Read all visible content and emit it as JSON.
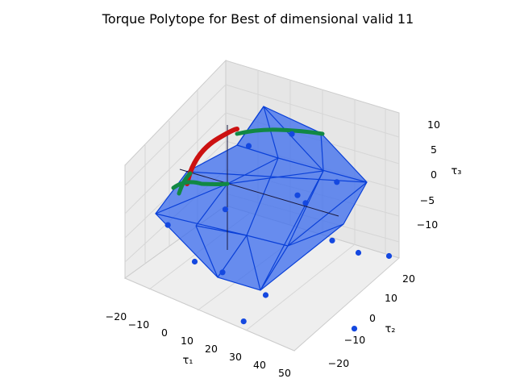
{
  "chart_data": {
    "type": "scatter",
    "projection": "3d",
    "title": "Torque Polytope for Best of dimensional valid 11",
    "xlabel": "τ₁",
    "ylabel": "τ₂",
    "zlabel": "τ₃",
    "xticks": [
      "−20",
      "−10",
      "0",
      "10",
      "20",
      "30",
      "40",
      "50"
    ],
    "yticks": [
      "−20",
      "−10",
      "0",
      "10",
      "20"
    ],
    "zticks": [
      "−10",
      "−5",
      "0",
      "5",
      "10"
    ],
    "xlim": [
      -25,
      52
    ],
    "ylim": [
      -25,
      25
    ],
    "zlim": [
      -13,
      13
    ],
    "grid": true,
    "colors": {
      "polytope_face": "#3366ee",
      "polytope_edge": "#0a40d8",
      "vertex": "#1448e0",
      "red_series": "#cc1111",
      "green_series": "#118844"
    },
    "vertices": [
      {
        "x": 20,
        "y": 0,
        "z": 13
      },
      {
        "x": 38,
        "y": 0,
        "z": 9
      },
      {
        "x": 55,
        "y": 5,
        "z": 0
      },
      {
        "x": 45,
        "y": 0,
        "z": -11
      },
      {
        "x": 10,
        "y": -12,
        "z": -13
      },
      {
        "x": -15,
        "y": -5,
        "z": -10
      },
      {
        "x": -18,
        "y": -15,
        "z": -3
      },
      {
        "x": 5,
        "y": -15,
        "z": 3
      },
      {
        "x": 30,
        "y": -10,
        "z": 8
      },
      {
        "x": 40,
        "y": -5,
        "z": 2
      },
      {
        "x": 25,
        "y": -20,
        "z": -5
      },
      {
        "x": 0,
        "y": -10,
        "z": -8
      },
      {
        "x": 35,
        "y": 15,
        "z": -5
      },
      {
        "x": -5,
        "y": 10,
        "z": 5
      },
      {
        "x": 10,
        "y": 20,
        "z": -3
      }
    ],
    "red_series": {
      "x": [
        -20,
        -12,
        -4,
        4,
        12
      ],
      "y": [
        -10,
        -4,
        2,
        8,
        12
      ],
      "z": [
        -2,
        2,
        6,
        9,
        11
      ]
    },
    "green_series": {
      "x": [
        -22,
        -14,
        -4,
        6,
        18,
        30,
        40
      ],
      "y": [
        -14,
        -12,
        -8,
        -2,
        4,
        8,
        10
      ],
      "z": [
        -4,
        -2,
        0,
        2,
        6,
        8,
        9
      ]
    }
  }
}
